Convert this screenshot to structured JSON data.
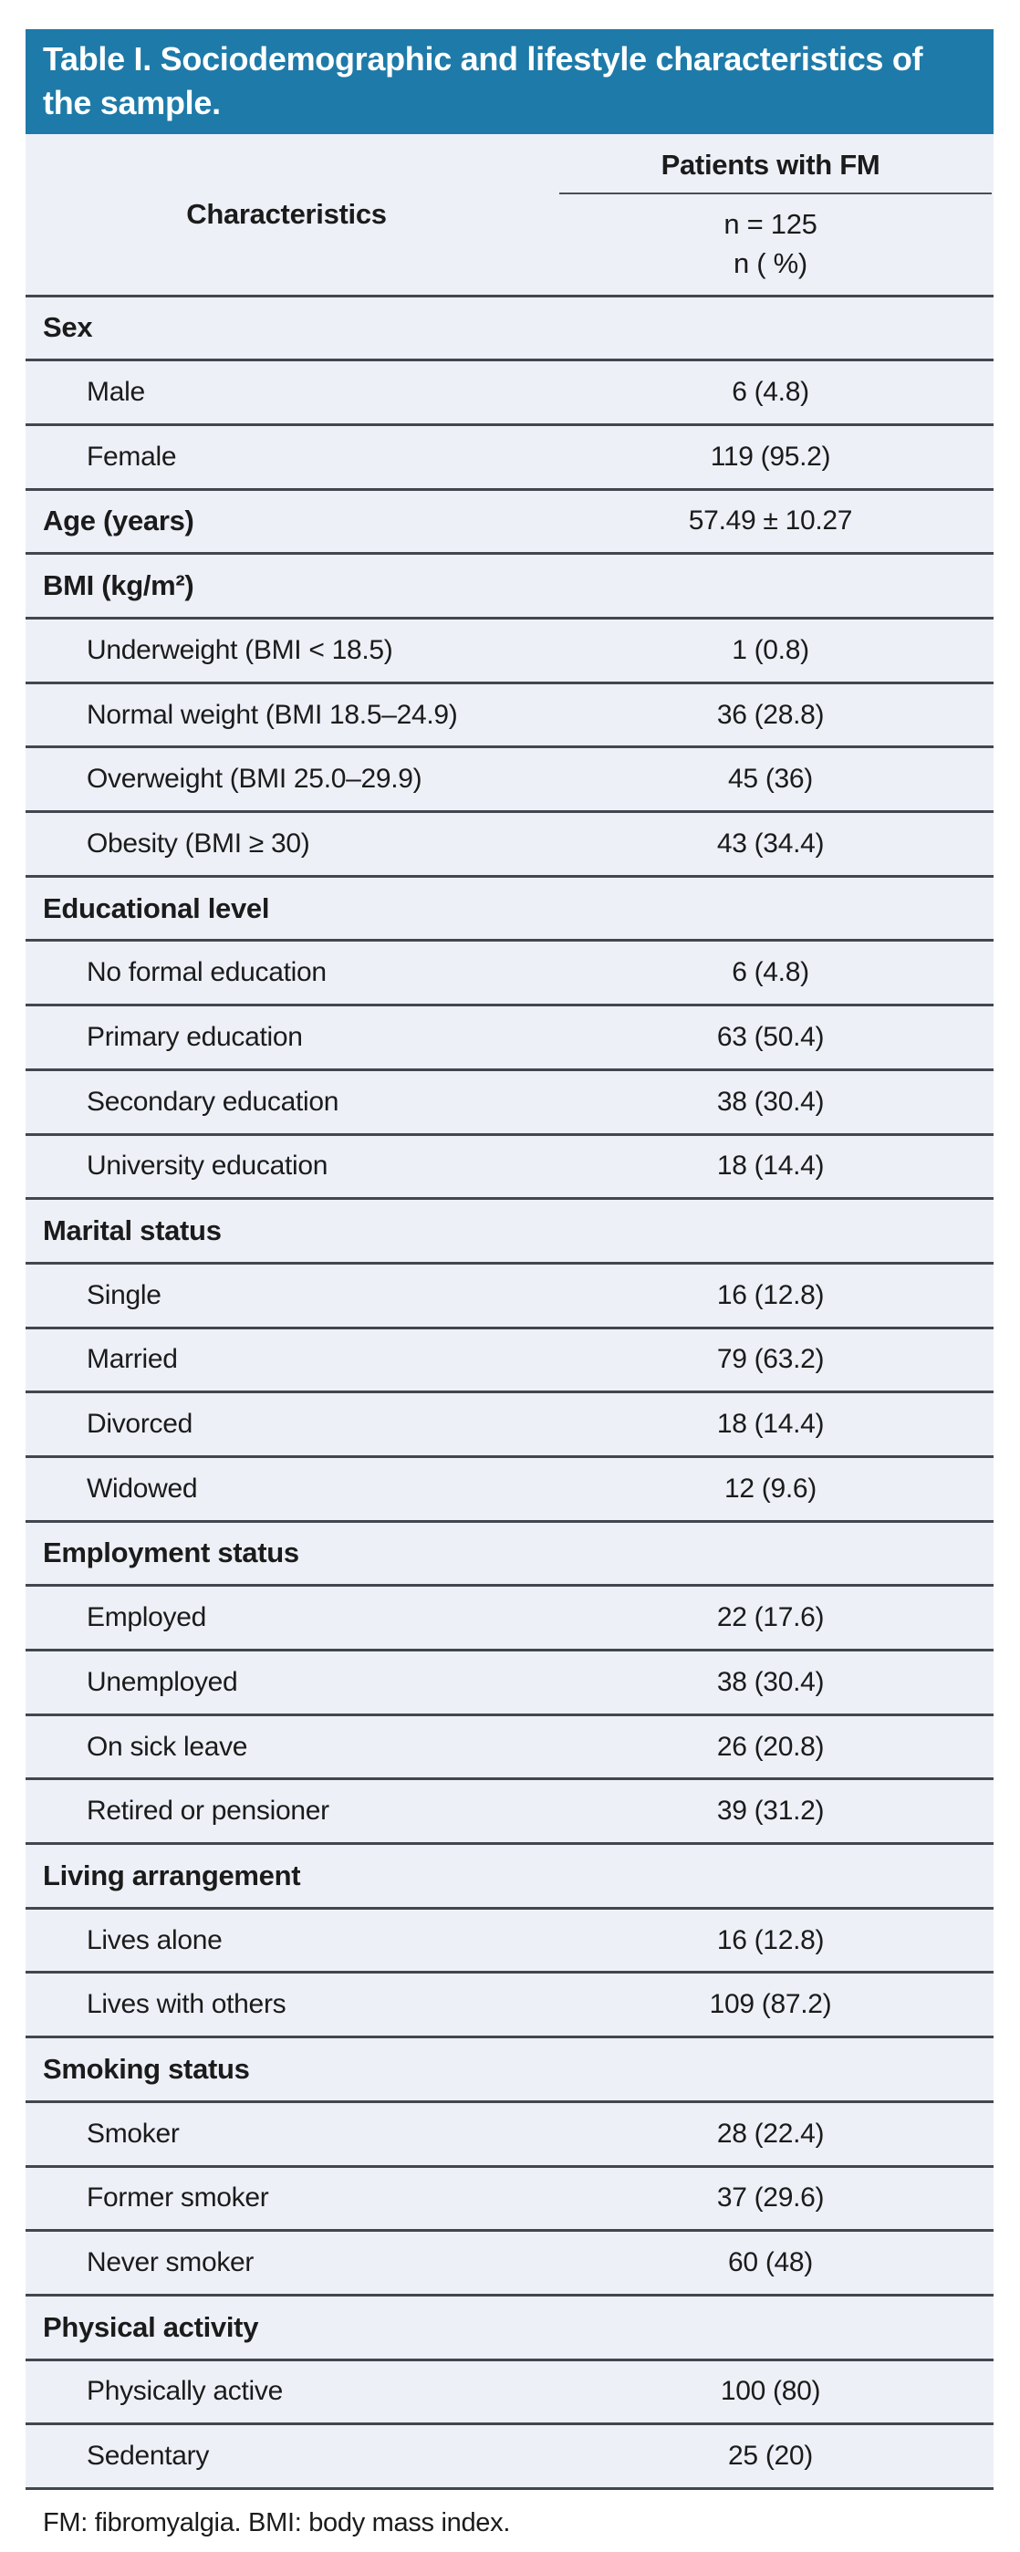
{
  "title": "Table I. Sociodemographic and lifestyle characteristics of the sample.",
  "header": {
    "characteristics_label": "Characteristics",
    "group_label": "Patients with FM",
    "sub_line1": "n = 125",
    "sub_line2": "n ( %)"
  },
  "rows": [
    {
      "type": "section",
      "label": "Sex",
      "value": ""
    },
    {
      "type": "item",
      "label": "Male",
      "value": "6 (4.8)"
    },
    {
      "type": "item",
      "label": "Female",
      "value": "119 (95.2)"
    },
    {
      "type": "section",
      "label": "Age (years)",
      "value": "57.49 ± 10.27"
    },
    {
      "type": "section",
      "label": "BMI (kg/m²)",
      "value": ""
    },
    {
      "type": "item",
      "label": "Underweight (BMI < 18.5)",
      "value": "1 (0.8)"
    },
    {
      "type": "item",
      "label": "Normal weight (BMI 18.5–24.9)",
      "value": "36 (28.8)"
    },
    {
      "type": "item",
      "label": "Overweight (BMI 25.0–29.9)",
      "value": "45 (36)"
    },
    {
      "type": "item",
      "label": "Obesity (BMI ≥ 30)",
      "value": "43 (34.4)"
    },
    {
      "type": "section",
      "label": "Educational level",
      "value": ""
    },
    {
      "type": "item",
      "label": "No formal education",
      "value": "6 (4.8)"
    },
    {
      "type": "item",
      "label": "Primary education",
      "value": "63 (50.4)"
    },
    {
      "type": "item",
      "label": "Secondary education",
      "value": "38 (30.4)"
    },
    {
      "type": "item",
      "label": "University education",
      "value": "18 (14.4)"
    },
    {
      "type": "section",
      "label": "Marital status",
      "value": ""
    },
    {
      "type": "item",
      "label": "Single",
      "value": "16 (12.8)"
    },
    {
      "type": "item",
      "label": "Married",
      "value": "79 (63.2)"
    },
    {
      "type": "item",
      "label": "Divorced",
      "value": "18 (14.4)"
    },
    {
      "type": "item",
      "label": "Widowed",
      "value": "12 (9.6)"
    },
    {
      "type": "section",
      "label": "Employment status",
      "value": ""
    },
    {
      "type": "item",
      "label": "Employed",
      "value": "22 (17.6)"
    },
    {
      "type": "item",
      "label": "Unemployed",
      "value": "38 (30.4)"
    },
    {
      "type": "item",
      "label": "On sick leave",
      "value": "26 (20.8)"
    },
    {
      "type": "item",
      "label": "Retired or pensioner",
      "value": "39 (31.2)"
    },
    {
      "type": "section",
      "label": "Living arrangement",
      "value": ""
    },
    {
      "type": "item",
      "label": "Lives alone",
      "value": "16 (12.8)"
    },
    {
      "type": "item",
      "label": "Lives with others",
      "value": "109 (87.2)"
    },
    {
      "type": "section",
      "label": "Smoking status",
      "value": ""
    },
    {
      "type": "item",
      "label": "Smoker",
      "value": "28 (22.4)"
    },
    {
      "type": "item",
      "label": "Former smoker",
      "value": "37 (29.6)"
    },
    {
      "type": "item",
      "label": "Never smoker",
      "value": "60 (48)"
    },
    {
      "type": "section",
      "label": "Physical activity",
      "value": ""
    },
    {
      "type": "item",
      "label": "Physically active",
      "value": "100 (80)"
    },
    {
      "type": "item",
      "label": "Sedentary",
      "value": "25 (20)"
    }
  ],
  "footnote": "FM: fibromyalgia. BMI: body mass index.",
  "colors": {
    "title_bar_bg": "#1e7aa8",
    "title_text": "#ffffff",
    "row_bg": "#edf0f7",
    "separator": "#42464e",
    "text": "#1b1b1b"
  }
}
